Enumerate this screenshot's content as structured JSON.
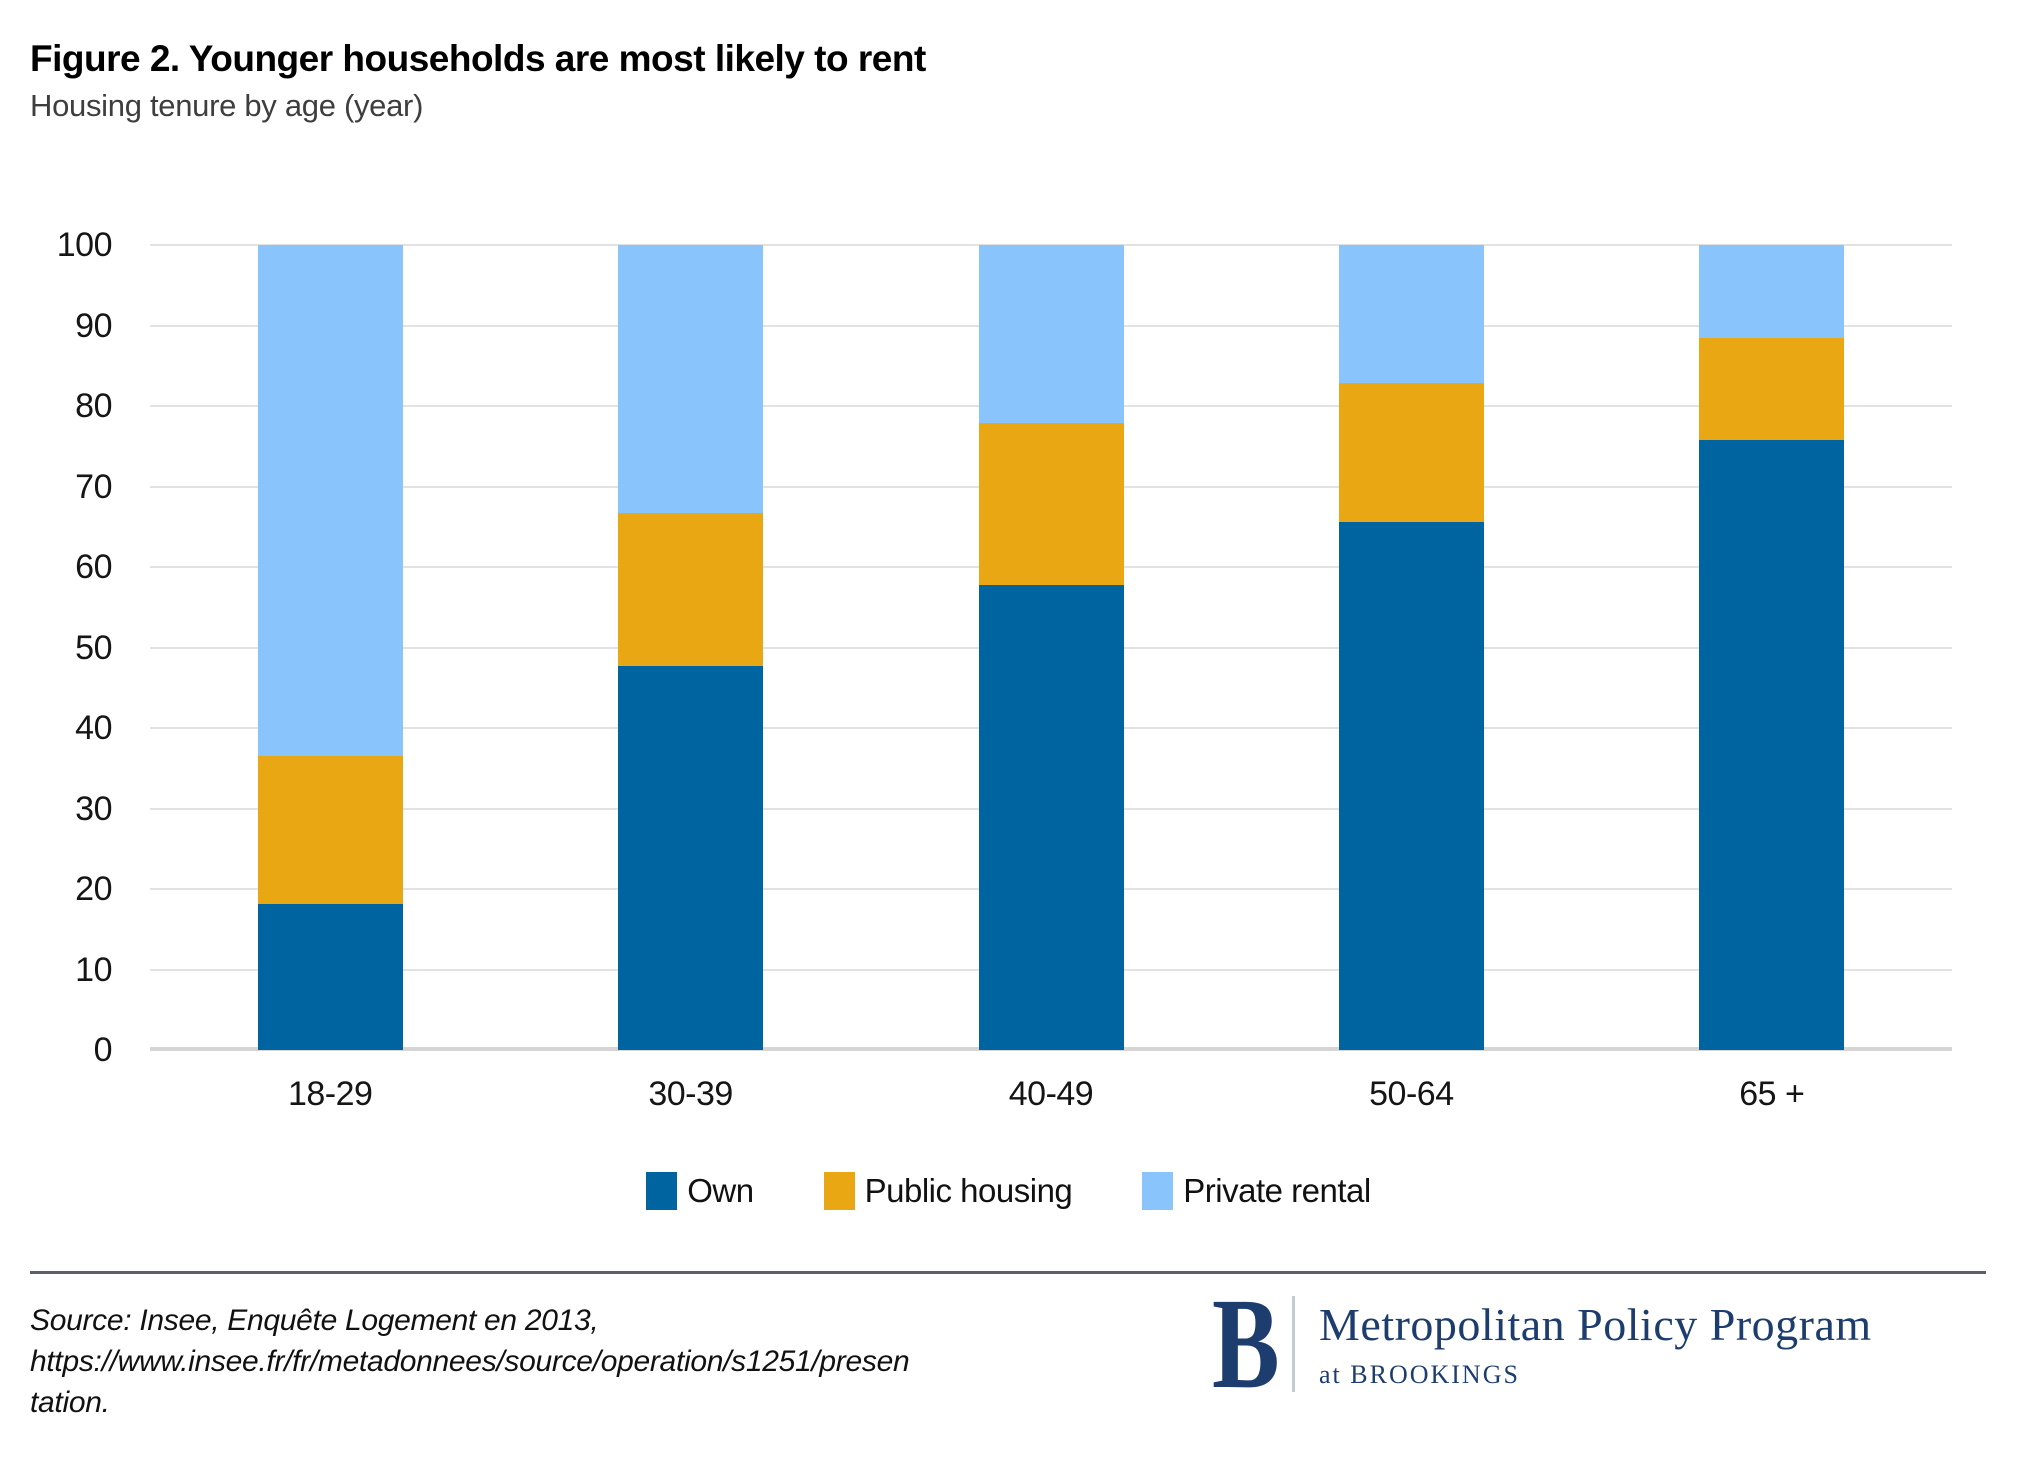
{
  "header": {
    "title": "Figure 2. Younger households are most likely to rent",
    "subtitle": "Housing tenure by age (year)"
  },
  "chart_data": {
    "type": "bar",
    "stacked": true,
    "title": "Figure 2. Younger households are most likely to rent",
    "subtitle": "Housing tenure by age (year)",
    "categories": [
      "18-29",
      "30-39",
      "40-49",
      "50-64",
      "65 +"
    ],
    "series": [
      {
        "name": "Own",
        "color": "#0064a1",
        "values": [
          18.2,
          47.7,
          57.8,
          65.6,
          75.8
        ]
      },
      {
        "name": "Public housing",
        "color": "#e9a714",
        "values": [
          18.3,
          19.0,
          20.1,
          17.3,
          12.7
        ]
      },
      {
        "name": "Private rental",
        "color": "#8ac4fd",
        "values": [
          63.5,
          33.3,
          22.1,
          17.1,
          11.5
        ]
      }
    ],
    "ylim": [
      0,
      100
    ],
    "yticks": [
      0,
      10,
      20,
      30,
      40,
      50,
      60,
      70,
      80,
      90,
      100
    ],
    "grid": true,
    "legend_position": "bottom"
  },
  "footer": {
    "source_line1": "Source: Insee, Enquête Logement en 2013,",
    "source_line2": "https://www.insee.fr/fr/metadonnees/source/operation/s1251/presen",
    "source_line3": "tation.",
    "logo_letter": "B",
    "logo_title": "Metropolitan Policy Program",
    "logo_subtitle": "at BROOKINGS"
  },
  "colors": {
    "own": "#0064a1",
    "public_housing": "#e9a714",
    "private_rental": "#8ac4fd",
    "brand_navy": "#1c3d6e"
  }
}
